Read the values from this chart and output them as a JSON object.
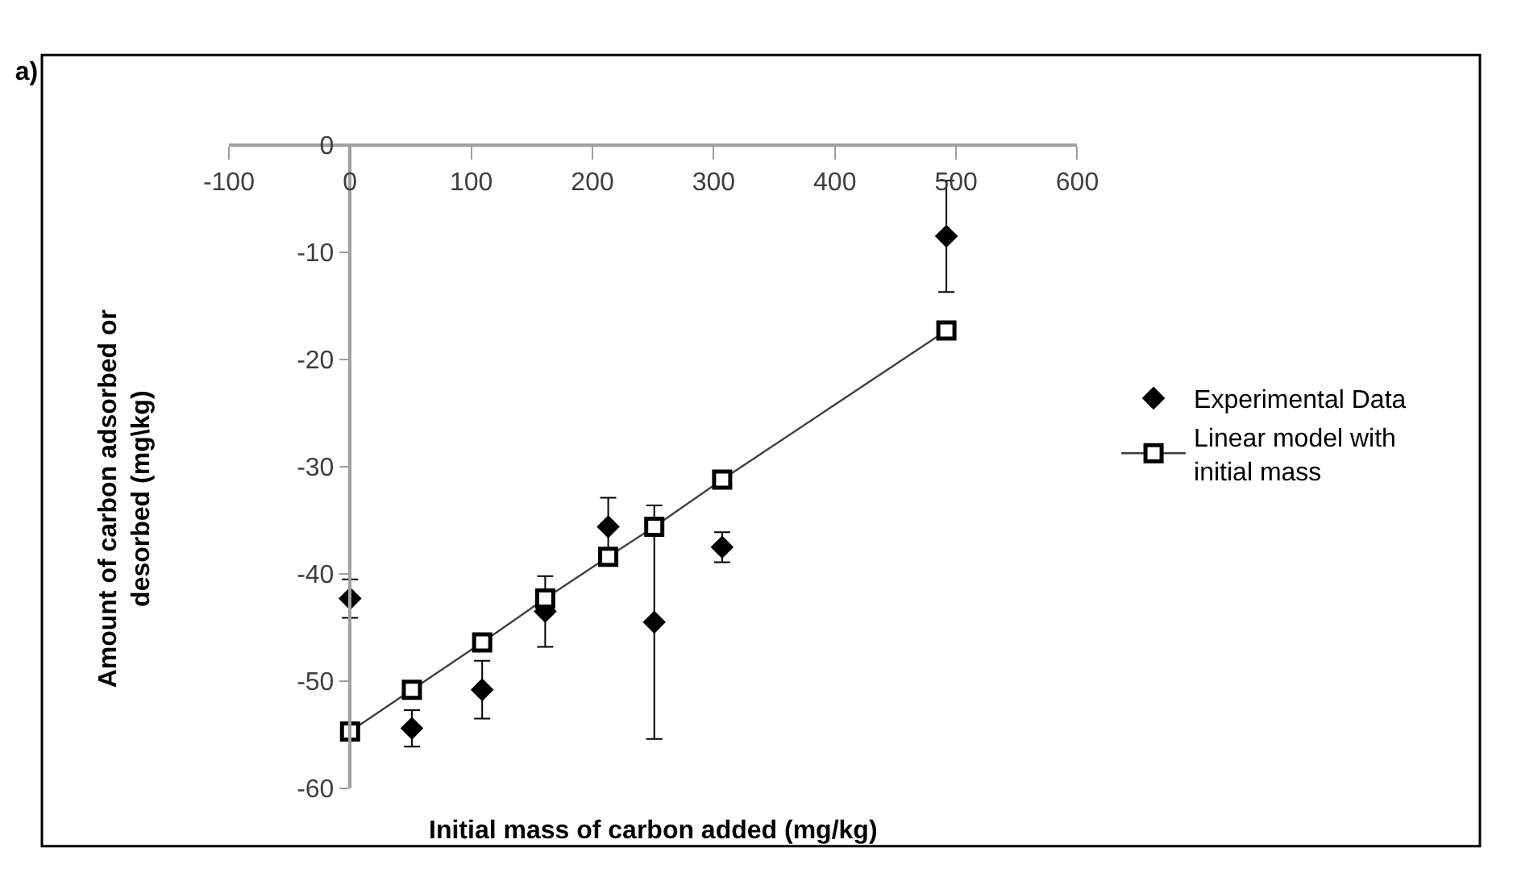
{
  "chart_data": {
    "type": "scatter",
    "title": "a)",
    "xlabel": "Initial mass of carbon added (mg/kg)",
    "ylabel": "Amount of carbon adsorbed or desorbed (mg\\kg)",
    "xlim": [
      -100,
      600
    ],
    "xticks": [
      -100,
      0,
      100,
      200,
      300,
      400,
      500,
      600
    ],
    "ylim": [
      -60,
      0
    ],
    "yticks": [
      -60,
      -50,
      -40,
      -30,
      -20,
      -10,
      0
    ],
    "legend": "right",
    "series": [
      {
        "name": "Experimental Data",
        "marker": "diamond",
        "color": "#000000",
        "x": [
          0,
          51,
          109,
          161,
          213,
          251,
          307,
          492
        ],
        "values": [
          -42.3,
          -54.4,
          -50.8,
          -43.5,
          -35.6,
          -44.5,
          -37.5,
          -8.5
        ],
        "errors": [
          1.8,
          1.7,
          2.7,
          3.3,
          2.7,
          10.9,
          1.4,
          5.2
        ]
      },
      {
        "name": "Linear model with initial mass",
        "type": "line",
        "marker": "square",
        "color": "#000000",
        "x": [
          0,
          51,
          109,
          161,
          213,
          251,
          307,
          492
        ],
        "values": [
          -54.7,
          -50.8,
          -46.4,
          -42.3,
          -38.4,
          -35.6,
          -31.2,
          -17.3
        ]
      }
    ]
  }
}
